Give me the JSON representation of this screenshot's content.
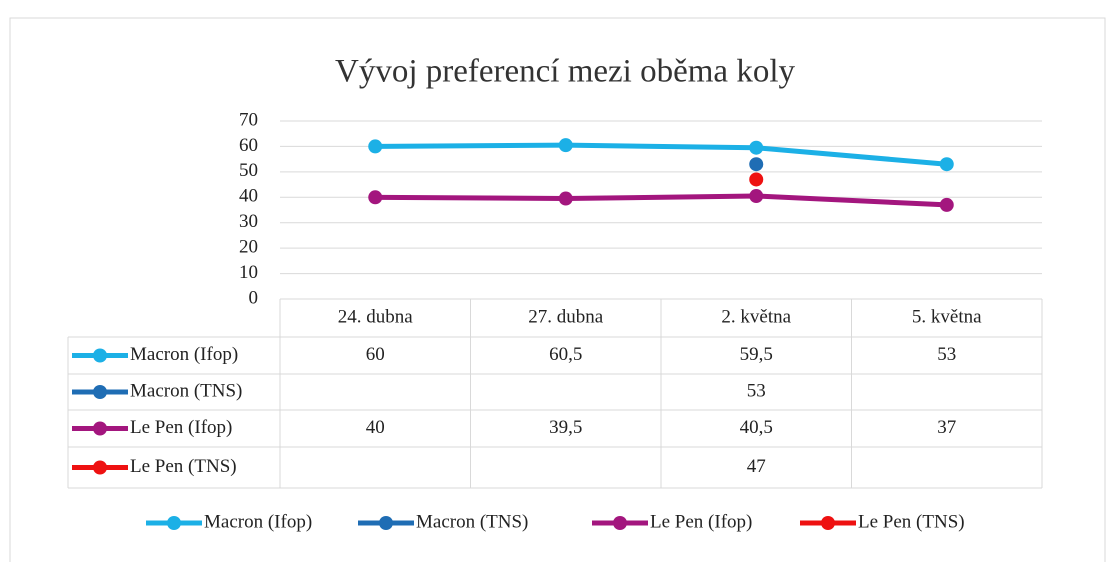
{
  "chart_data": {
    "type": "line",
    "title": "Vývoj preferencí mezi oběma koly",
    "categories": [
      "24. dubna",
      "27. dubna",
      "2. května",
      "5. května"
    ],
    "series": [
      {
        "name": "Macron (Ifop)",
        "color": "#1cb0e6",
        "values": [
          60,
          60.5,
          59.5,
          53
        ],
        "value_labels": [
          "60",
          "60,5",
          "59,5",
          "53"
        ]
      },
      {
        "name": "Macron (TNS)",
        "color": "#1f6db4",
        "values": [
          null,
          null,
          53,
          null
        ],
        "value_labels": [
          null,
          null,
          "53",
          null
        ]
      },
      {
        "name": "Le Pen (Ifop)",
        "color": "#a3167e",
        "values": [
          40,
          39.5,
          40.5,
          37
        ],
        "value_labels": [
          "40",
          "39,5",
          "40,5",
          "37"
        ]
      },
      {
        "name": "Le Pen (TNS)",
        "color": "#ee1111",
        "values": [
          null,
          null,
          47,
          null
        ],
        "value_labels": [
          null,
          null,
          "47",
          null
        ]
      }
    ],
    "ylim": [
      0,
      70
    ],
    "yticks": [
      0,
      10,
      20,
      30,
      40,
      50,
      60,
      70
    ],
    "grid": true,
    "legend": "bottom",
    "data_table": true
  }
}
